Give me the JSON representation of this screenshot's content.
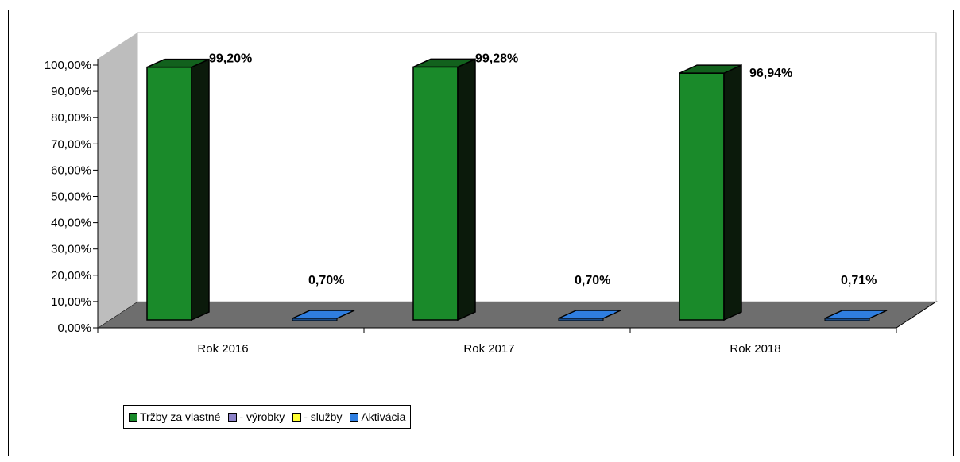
{
  "chart_data": {
    "type": "bar",
    "categories": [
      "Rok 2016",
      "Rok 2017",
      "Rok 2018"
    ],
    "series": [
      {
        "name": "Tržby za vlastné",
        "values": [
          99.2,
          99.28,
          96.94
        ],
        "labels": [
          "99,20%",
          "99,28%",
          "96,94%"
        ],
        "color": "#1a8a2a"
      },
      {
        "name": "- výrobky",
        "values": [
          0,
          0,
          0
        ],
        "labels": [
          "",
          "",
          ""
        ],
        "color": "#8c82c8"
      },
      {
        "name": "- služby",
        "values": [
          0,
          0,
          0
        ],
        "labels": [
          "",
          "",
          ""
        ],
        "color": "#ffff33"
      },
      {
        "name": "Aktivácia",
        "values": [
          0.7,
          0.7,
          0.71
        ],
        "labels": [
          "0,70%",
          "0,70%",
          "0,71%"
        ],
        "color": "#2f7ee0"
      }
    ],
    "ylim": [
      0,
      100
    ],
    "yticks": [
      "0,00%",
      "10,00%",
      "20,00%",
      "30,00%",
      "40,00%",
      "50,00%",
      "60,00%",
      "70,00%",
      "80,00%",
      "90,00%",
      "100,00%"
    ],
    "xlabel": "",
    "ylabel": "",
    "title": "",
    "legend_position": "bottom-left",
    "grid": false,
    "colors": {
      "wall": "#bdbdbd",
      "floor": "#6e6e6e",
      "plot_back": "#ffffff"
    }
  }
}
